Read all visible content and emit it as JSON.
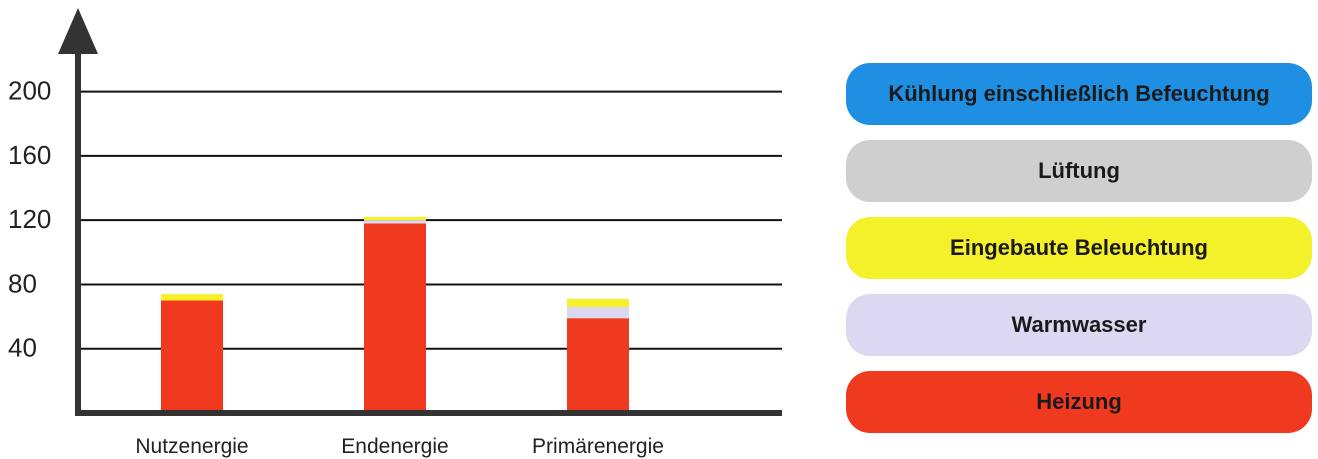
{
  "chart_data": {
    "type": "bar",
    "stacked": true,
    "categories": [
      "Nutzenergie",
      "Endenergie",
      "Primärenergie"
    ],
    "y_ticks": [
      40,
      80,
      120,
      160,
      200
    ],
    "ylim": [
      0,
      210
    ],
    "grid": true,
    "legend_position": "right",
    "series": [
      {
        "name": "Heizung",
        "color": "#f03a1f",
        "values": [
          70,
          118,
          59
        ]
      },
      {
        "name": "Warmwasser",
        "color": "#dcd8f2",
        "values": [
          0,
          2,
          7
        ]
      },
      {
        "name": "Eingebaute Beleuchtung",
        "color": "#f4f02a",
        "values": [
          4,
          2,
          5
        ]
      },
      {
        "name": "Lüftung",
        "color": "#cfcfcf",
        "values": [
          0,
          0,
          0
        ]
      },
      {
        "name": "Kühlung einschließlich Befeuchtung",
        "color": "#1e8fe3",
        "values": [
          0,
          0,
          0
        ]
      }
    ]
  },
  "legend": [
    {
      "label": "Kühlung einschließlich Befeuchtung",
      "color": "#1e8fe3"
    },
    {
      "label": "Lüftung",
      "color": "#cfcfcf"
    },
    {
      "label": "Eingebaute Beleuchtung",
      "color": "#f4f02a"
    },
    {
      "label": "Warmwasser",
      "color": "#dcd8f2"
    },
    {
      "label": "Heizung",
      "color": "#f03a1f"
    }
  ]
}
